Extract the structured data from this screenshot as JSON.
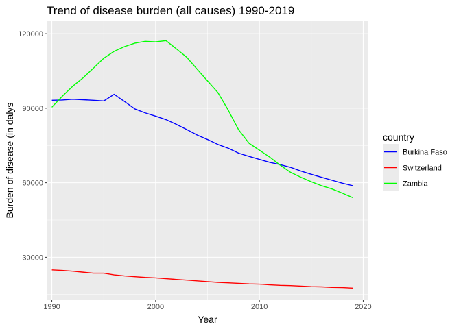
{
  "chart_data": {
    "type": "line",
    "title": "Trend of disease burden (all causes) 1990-2019",
    "xlabel": "Year",
    "ylabel": "Burden of disease (in dalys",
    "xlim": [
      1989.5,
      2020.5
    ],
    "ylim": [
      13000,
      125000
    ],
    "x_ticks": [
      1990,
      2000,
      2010,
      2020
    ],
    "y_ticks": [
      30000,
      60000,
      90000,
      120000
    ],
    "x_tick_labels": [
      "1990",
      "2000",
      "2010",
      "2020"
    ],
    "y_tick_labels": [
      "30000",
      "60000",
      "90000",
      "120000"
    ],
    "grid": true,
    "legend": {
      "title": "country",
      "placement": "right"
    },
    "x": [
      1990,
      1991,
      1992,
      1993,
      1994,
      1995,
      1996,
      1997,
      1998,
      1999,
      2000,
      2001,
      2002,
      2003,
      2004,
      2005,
      2006,
      2007,
      2008,
      2009,
      2010,
      2011,
      2012,
      2013,
      2014,
      2015,
      2016,
      2017,
      2018,
      2019
    ],
    "series": [
      {
        "name": "Burkina Faso",
        "color": "#0000ff",
        "values": [
          93200,
          93300,
          93600,
          93400,
          93200,
          92900,
          95600,
          92700,
          89700,
          88100,
          86800,
          85400,
          83500,
          81400,
          79200,
          77400,
          75400,
          73900,
          71900,
          70600,
          69400,
          68200,
          67300,
          66200,
          64700,
          63400,
          62200,
          61000,
          59800,
          58800
        ]
      },
      {
        "name": "Switzerland",
        "color": "#ff0000",
        "values": [
          24900,
          24700,
          24400,
          24000,
          23600,
          23600,
          22900,
          22500,
          22200,
          21900,
          21700,
          21400,
          21100,
          20800,
          20500,
          20200,
          19900,
          19700,
          19500,
          19300,
          19200,
          18900,
          18700,
          18600,
          18400,
          18200,
          18100,
          17900,
          17800,
          17600
        ]
      },
      {
        "name": "Zambia",
        "color": "#00ff00",
        "values": [
          90400,
          94800,
          98800,
          102200,
          106100,
          110100,
          112900,
          114800,
          116200,
          116900,
          116700,
          117200,
          113900,
          110500,
          105700,
          101000,
          96300,
          89200,
          81300,
          75900,
          73100,
          70300,
          67100,
          64200,
          62200,
          60400,
          58800,
          57500,
          55800,
          54000
        ]
      }
    ]
  }
}
